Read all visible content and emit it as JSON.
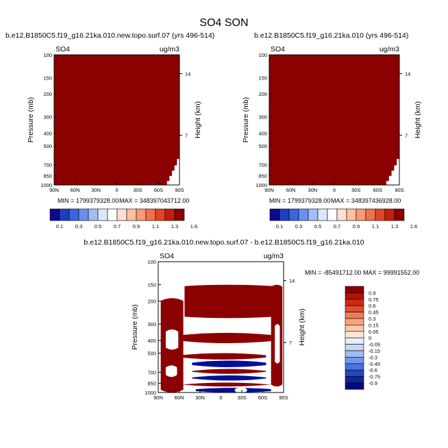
{
  "title": "SO4 SON",
  "chart_data": [
    {
      "type": "heatmap",
      "title": "b.e12.B1850C5.f19_g16.21ka.010.new.topo.surf.07 (yrs 496-514)",
      "variable": "SO4",
      "units": "ug/m3",
      "ylabel": "Pressure (mb)",
      "ylabel_right": "Height (km)",
      "xticks": [
        "90N",
        "60N",
        "30N",
        "0",
        "30S",
        "60S",
        "90S"
      ],
      "yticks": [
        "100",
        "150",
        "200",
        "300",
        "400",
        "500",
        "700",
        "850",
        "1000"
      ],
      "height_ticks": [
        "14",
        "7"
      ],
      "min_label": "MIN = 1799379328.00",
      "max_label": "MAX = 348397043712.00",
      "fill_color": "#8b0000",
      "colorbar_labels": [
        "0.1",
        "0.3",
        "0.5",
        "0.7",
        "0.9",
        "1.1",
        "1.3",
        "1.6"
      ],
      "colorbar_colors": [
        "#0a0a8c",
        "#1d3fc2",
        "#3a64e0",
        "#6b8fef",
        "#a4bdf7",
        "#dce6fb",
        "#ffffff",
        "#fde0d2",
        "#fbbfa4",
        "#f79a76",
        "#f0704a",
        "#e04622",
        "#c41e0e",
        "#8b0000"
      ]
    },
    {
      "type": "heatmap",
      "title": "b.e12.B1850C5.f19_g16.21ka.010 (yrs 496-514)",
      "variable": "SO4",
      "units": "ug/m3",
      "ylabel": "Pressure (mb)",
      "ylabel_right": "Height (km)",
      "xticks": [
        "90N",
        "60N",
        "30N",
        "0",
        "30S",
        "60S",
        "90S"
      ],
      "yticks": [
        "100",
        "150",
        "200",
        "300",
        "400",
        "500",
        "700",
        "850",
        "1000"
      ],
      "height_ticks": [
        "14",
        "7"
      ],
      "min_label": "MIN = 1799379328.00",
      "max_label": "MAX = 348397436928.00",
      "fill_color": "#8b0000",
      "colorbar_labels": [
        "0.1",
        "0.3",
        "0.5",
        "0.7",
        "0.9",
        "1.1",
        "1.3",
        "1.6"
      ],
      "colorbar_colors": [
        "#0a0a8c",
        "#1d3fc2",
        "#3a64e0",
        "#6b8fef",
        "#a4bdf7",
        "#dce6fb",
        "#ffffff",
        "#fde0d2",
        "#fbbfa4",
        "#f79a76",
        "#f0704a",
        "#e04622",
        "#c41e0e",
        "#8b0000"
      ]
    },
    {
      "type": "heatmap",
      "title": "b.e12.B1850C5.f19_g16.21ka.010.new.topo.surf.07 - b.e12.B1850C5.f19_g16.21ka.010",
      "variable": "SO4",
      "units": "ug/m3",
      "ylabel": "Pressure (mb)",
      "ylabel_right": "Height (km)",
      "xticks": [
        "90N",
        "60N",
        "30N",
        "0",
        "30S",
        "60S",
        "90S"
      ],
      "yticks": [
        "100",
        "150",
        "200",
        "300",
        "400",
        "500",
        "700",
        "850",
        "1000"
      ],
      "height_ticks": [
        "14",
        "7"
      ],
      "min_label": "MIN = -85491712.00",
      "max_label": "MAX = 99991552.00",
      "colorbar_labels": [
        "0.9",
        "0.75",
        "0.6",
        "0.45",
        "0.3",
        "0.15",
        "0.05",
        "0",
        "-0.05",
        "-0.15",
        "-0.3",
        "-0.45",
        "-0.6",
        "-0.75",
        "-0.9"
      ],
      "colorbar_colors": [
        "#8b0000",
        "#b01208",
        "#cc2a14",
        "#e04e2c",
        "#f07a52",
        "#f7a47e",
        "#fbc8ac",
        "#fde6d8",
        "#e6eefb",
        "#c6d7f7",
        "#9fbcf2",
        "#7298ea",
        "#4a72de",
        "#2448c4",
        "#10249c",
        "#000c7c"
      ],
      "bands": {
        "positive_color": "#8b0000",
        "negative_color": "#00109a"
      }
    }
  ]
}
